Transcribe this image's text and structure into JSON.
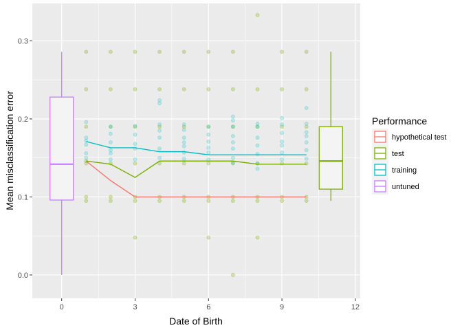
{
  "chart_data": {
    "type": "scatter",
    "title": "",
    "xlabel": "Date of Birth",
    "ylabel": "Mean misclassification error",
    "xlim": [
      -1.2,
      12.2
    ],
    "ylim": [
      -0.03,
      0.348
    ],
    "x_ticks": [
      0,
      3,
      6,
      9,
      12
    ],
    "x_tick_labels": [
      "0",
      "3",
      "6",
      "9",
      "12"
    ],
    "y_ticks": [
      0.0,
      0.1,
      0.2,
      0.3
    ],
    "y_tick_labels": [
      "0.0",
      "0.1",
      "0.2",
      "0.3"
    ],
    "grid": true,
    "legend": {
      "title": "Performance",
      "position": "right",
      "entries": [
        {
          "label": "hypothetical test",
          "color": "#F8766D"
        },
        {
          "label": "test",
          "color": "#7CAE00"
        },
        {
          "label": "training",
          "color": "#00BFC4"
        },
        {
          "label": "untuned",
          "color": "#C77CFF"
        }
      ]
    },
    "colors": {
      "hypothetical_test": "#F8766D",
      "test": "#7CAE00",
      "training": "#00BFC4",
      "untuned": "#C77CFF",
      "panel_bg": "#EBEBEB",
      "grid": "#FFFFFF"
    },
    "series": [
      {
        "name": "hypothetical test",
        "color": "#F8766D",
        "x": [
          1,
          2,
          3,
          4,
          5,
          6,
          7,
          8,
          9,
          10
        ],
        "y": [
          0.146,
          0.121,
          0.1,
          0.1,
          0.1,
          0.1,
          0.1,
          0.1,
          0.1,
          0.1
        ]
      },
      {
        "name": "test",
        "color": "#7CAE00",
        "x": [
          1,
          2,
          3,
          4,
          5,
          6,
          7,
          8,
          9,
          10
        ],
        "y": [
          0.146,
          0.142,
          0.125,
          0.146,
          0.146,
          0.146,
          0.146,
          0.142,
          0.142,
          0.142
        ]
      },
      {
        "name": "training",
        "color": "#00BFC4",
        "x": [
          1,
          2,
          3,
          4,
          5,
          6,
          7,
          8,
          9,
          10
        ],
        "y": [
          0.171,
          0.163,
          0.163,
          0.158,
          0.158,
          0.154,
          0.154,
          0.154,
          0.154,
          0.154
        ]
      }
    ],
    "points": {
      "test": [
        [
          1,
          0.095
        ],
        [
          1,
          0.1
        ],
        [
          1,
          0.143
        ],
        [
          1,
          0.19
        ],
        [
          1,
          0.238
        ],
        [
          1,
          0.286
        ],
        [
          1,
          0.146
        ],
        [
          2,
          0.095
        ],
        [
          2,
          0.1
        ],
        [
          2,
          0.143
        ],
        [
          2,
          0.19
        ],
        [
          2,
          0.238
        ],
        [
          2,
          0.286
        ],
        [
          3,
          0.048
        ],
        [
          3,
          0.095
        ],
        [
          3,
          0.1
        ],
        [
          3,
          0.143
        ],
        [
          3,
          0.19
        ],
        [
          3,
          0.238
        ],
        [
          3,
          0.286
        ],
        [
          4,
          0.095
        ],
        [
          4,
          0.1
        ],
        [
          4,
          0.143
        ],
        [
          4,
          0.19
        ],
        [
          4,
          0.238
        ],
        [
          4,
          0.286
        ],
        [
          5,
          0.095
        ],
        [
          5,
          0.1
        ],
        [
          5,
          0.143
        ],
        [
          5,
          0.19
        ],
        [
          5,
          0.238
        ],
        [
          5,
          0.286
        ],
        [
          6,
          0.048
        ],
        [
          6,
          0.095
        ],
        [
          6,
          0.1
        ],
        [
          6,
          0.143
        ],
        [
          6,
          0.19
        ],
        [
          6,
          0.238
        ],
        [
          6,
          0.286
        ],
        [
          7,
          0.0
        ],
        [
          7,
          0.095
        ],
        [
          7,
          0.1
        ],
        [
          7,
          0.143
        ],
        [
          7,
          0.19
        ],
        [
          7,
          0.238
        ],
        [
          7,
          0.286
        ],
        [
          8,
          0.048
        ],
        [
          8,
          0.095
        ],
        [
          8,
          0.1
        ],
        [
          8,
          0.143
        ],
        [
          8,
          0.19
        ],
        [
          8,
          0.238
        ],
        [
          8,
          0.333
        ],
        [
          9,
          0.095
        ],
        [
          9,
          0.1
        ],
        [
          9,
          0.143
        ],
        [
          9,
          0.19
        ],
        [
          9,
          0.238
        ],
        [
          9,
          0.286
        ],
        [
          10,
          0.095
        ],
        [
          10,
          0.1
        ],
        [
          10,
          0.143
        ],
        [
          10,
          0.19
        ],
        [
          10,
          0.238
        ],
        [
          10,
          0.286
        ]
      ],
      "training": [
        [
          1,
          0.15
        ],
        [
          1,
          0.156
        ],
        [
          1,
          0.167
        ],
        [
          1,
          0.172
        ],
        [
          1,
          0.176
        ],
        [
          1,
          0.196
        ],
        [
          2,
          0.148
        ],
        [
          2,
          0.156
        ],
        [
          2,
          0.16
        ],
        [
          2,
          0.17
        ],
        [
          2,
          0.181
        ],
        [
          2,
          0.19
        ],
        [
          3,
          0.148
        ],
        [
          3,
          0.162
        ],
        [
          3,
          0.168
        ],
        [
          3,
          0.18
        ],
        [
          3,
          0.191
        ],
        [
          4,
          0.15
        ],
        [
          4,
          0.162
        ],
        [
          4,
          0.176
        ],
        [
          4,
          0.185
        ],
        [
          4,
          0.193
        ],
        [
          4,
          0.22
        ],
        [
          4,
          0.224
        ],
        [
          5,
          0.149
        ],
        [
          5,
          0.157
        ],
        [
          5,
          0.165
        ],
        [
          5,
          0.17
        ],
        [
          5,
          0.176
        ],
        [
          5,
          0.186
        ],
        [
          5,
          0.193
        ],
        [
          6,
          0.148
        ],
        [
          6,
          0.157
        ],
        [
          6,
          0.163
        ],
        [
          6,
          0.171
        ],
        [
          6,
          0.18
        ],
        [
          6,
          0.19
        ],
        [
          7,
          0.144
        ],
        [
          7,
          0.15
        ],
        [
          7,
          0.162
        ],
        [
          7,
          0.17
        ],
        [
          7,
          0.178
        ],
        [
          7,
          0.19
        ],
        [
          7,
          0.198
        ],
        [
          7,
          0.203
        ],
        [
          8,
          0.136
        ],
        [
          8,
          0.143
        ],
        [
          8,
          0.155
        ],
        [
          8,
          0.166
        ],
        [
          8,
          0.176
        ],
        [
          8,
          0.19
        ],
        [
          8,
          0.194
        ],
        [
          9,
          0.148
        ],
        [
          9,
          0.157
        ],
        [
          9,
          0.166
        ],
        [
          9,
          0.171
        ],
        [
          9,
          0.182
        ],
        [
          9,
          0.193
        ],
        [
          9,
          0.201
        ],
        [
          10,
          0.149
        ],
        [
          10,
          0.16
        ],
        [
          10,
          0.17
        ],
        [
          10,
          0.178
        ],
        [
          10,
          0.183
        ],
        [
          10,
          0.194
        ],
        [
          10,
          0.214
        ]
      ]
    },
    "boxplots": [
      {
        "name": "untuned",
        "x": 0,
        "color": "#C77CFF",
        "min": 0.0,
        "q1": 0.096,
        "median": 0.142,
        "q3": 0.228,
        "max": 0.286
      },
      {
        "name": "test",
        "x": 11,
        "color": "#7CAE00",
        "min": 0.095,
        "q1": 0.11,
        "median": 0.146,
        "q3": 0.19,
        "max": 0.286
      }
    ]
  }
}
